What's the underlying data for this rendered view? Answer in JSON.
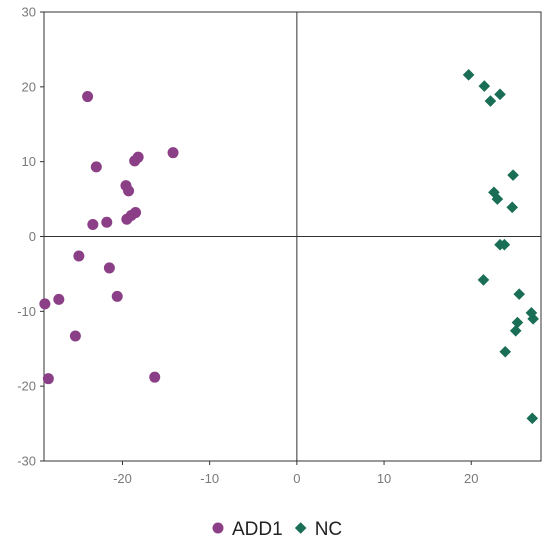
{
  "chart_data": {
    "type": "scatter",
    "title": "",
    "xlabel": "",
    "ylabel": "",
    "xlim": [
      -29,
      28
    ],
    "ylim": [
      -30,
      30
    ],
    "x_ticks": [
      -20,
      -10,
      0,
      10,
      20
    ],
    "y_ticks": [
      30,
      20,
      10,
      0,
      -10,
      -20,
      -30
    ],
    "legend_position": "bottom-center",
    "series": [
      {
        "name": "ADD1",
        "marker": "circle",
        "color": "#8B3F86",
        "points": [
          [
            -24,
            18.7
          ],
          [
            -23,
            9.3
          ],
          [
            -18.6,
            10.1
          ],
          [
            -18.2,
            10.6
          ],
          [
            -14.2,
            11.2
          ],
          [
            -19.6,
            6.8
          ],
          [
            -19.3,
            6.1
          ],
          [
            -19.5,
            2.3
          ],
          [
            -19,
            2.8
          ],
          [
            -18.5,
            3.2
          ],
          [
            -21.8,
            1.9
          ],
          [
            -23.4,
            1.6
          ],
          [
            -25,
            -2.6
          ],
          [
            -21.5,
            -4.2
          ],
          [
            -27.3,
            -8.4
          ],
          [
            -28.9,
            -9.0
          ],
          [
            -20.6,
            -8.0
          ],
          [
            -25.4,
            -13.3
          ],
          [
            -28.5,
            -19.0
          ],
          [
            -16.3,
            -18.8
          ]
        ]
      },
      {
        "name": "NC",
        "marker": "diamond",
        "color": "#1A6E55",
        "points": [
          [
            19.7,
            21.6
          ],
          [
            21.5,
            20.1
          ],
          [
            22.2,
            18.1
          ],
          [
            23.3,
            19.0
          ],
          [
            24.8,
            8.2
          ],
          [
            22.6,
            5.9
          ],
          [
            23.0,
            5.0
          ],
          [
            24.7,
            3.9
          ],
          [
            23.3,
            -1.1
          ],
          [
            23.8,
            -1.1
          ],
          [
            21.4,
            -5.8
          ],
          [
            25.5,
            -7.7
          ],
          [
            26.9,
            -10.2
          ],
          [
            27.1,
            -11.0
          ],
          [
            25.3,
            -11.5
          ],
          [
            25.1,
            -12.6
          ],
          [
            23.9,
            -15.4
          ],
          [
            27.0,
            -24.3
          ]
        ]
      }
    ]
  }
}
